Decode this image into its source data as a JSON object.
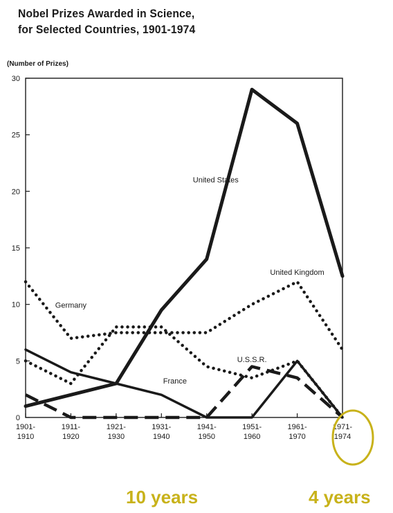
{
  "chart_data": {
    "type": "line",
    "title": "Nobel Prizes Awarded in Science,",
    "subtitle": "for Selected Countries, 1901-1974",
    "ylabel": "(Number of Prizes)",
    "xlabel": "",
    "ylim": [
      0,
      30
    ],
    "yticks": [
      "0",
      "5",
      "10",
      "15",
      "20",
      "25",
      "30"
    ],
    "categories": [
      [
        "1901-",
        "1910"
      ],
      [
        "1911-",
        "1920"
      ],
      [
        "1921-",
        "1930"
      ],
      [
        "1931-",
        "1940"
      ],
      [
        "1941-",
        "1950"
      ],
      [
        "1951-",
        "1960"
      ],
      [
        "1961-",
        "1970"
      ],
      [
        "1971-",
        "1974"
      ]
    ],
    "series": [
      {
        "name": "United States",
        "style": "solid-thick",
        "values": [
          1,
          2,
          3,
          9.5,
          14,
          29,
          26,
          12.5
        ]
      },
      {
        "name": "United Kingdom",
        "style": "dotted",
        "values": [
          5,
          3,
          8,
          8,
          4.5,
          3.5,
          5,
          0
        ]
      },
      {
        "name": "Germany",
        "style": "dotted",
        "values": [
          12,
          7,
          7.5,
          7.5,
          7.5,
          10,
          12,
          6
        ]
      },
      {
        "name": "France",
        "style": "solid",
        "values": [
          6,
          4,
          3,
          2,
          0,
          0,
          5,
          0
        ]
      },
      {
        "name": "U.S.S.R.",
        "style": "dashed",
        "values": [
          2,
          0,
          0,
          0,
          0,
          4.5,
          3.5,
          0
        ]
      }
    ],
    "grid": false,
    "line_color": "#1a1a1a"
  },
  "annotations": {
    "left_note": "10 years",
    "right_note": "4 years",
    "highlight_color": "#c8b21a",
    "highlight_target": "1971-1974"
  }
}
